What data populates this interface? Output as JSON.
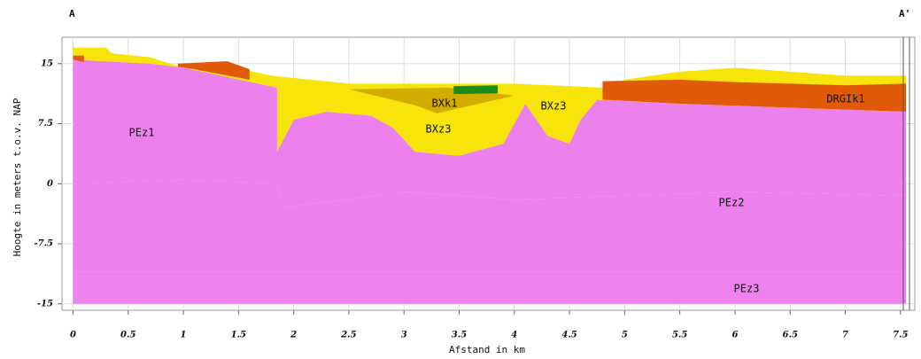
{
  "chart_data": {
    "type": "cross-section",
    "start_label": "A",
    "end_label": "A'",
    "xlabel": "Afstand in km",
    "ylabel": "Hoogte in meters t.o.v. NAP",
    "xlim": [
      -0.1,
      7.63
    ],
    "ylim": [
      -15.8,
      18.3
    ],
    "xticks": [
      0,
      0.5,
      1,
      1.5,
      2,
      2.5,
      3,
      3.5,
      4,
      4.5,
      5,
      5.5,
      6,
      6.5,
      7,
      7.5
    ],
    "yticks": [
      -15,
      -7.5,
      0,
      7.5,
      15
    ],
    "grid": true,
    "layers": [
      {
        "color": "#ee82ee",
        "x": [
          0,
          7.55,
          7.55,
          0
        ],
        "y": [
          -15,
          -15,
          -11,
          -11
        ]
      },
      {
        "color": "#ec80ec",
        "x": [
          0,
          7.55,
          7.55,
          6,
          4,
          3,
          1.9,
          1.85,
          1,
          0
        ],
        "y": [
          -11,
          -11,
          -1.5,
          -1,
          -2,
          -1,
          -3,
          0,
          0.5,
          0
        ]
      },
      {
        "color": "#ec80ec",
        "x": [
          0,
          1,
          1.85,
          1.9,
          3,
          4,
          6,
          7.55,
          7.55,
          6.5,
          5.5,
          4.75,
          4.6,
          4.5,
          4.3,
          4.2,
          4.1,
          4,
          3.9,
          3.5,
          3.1,
          2.9,
          2.7,
          2.3,
          2,
          1.85,
          1.85,
          1,
          0.7,
          0
        ],
        "y": [
          0,
          0.5,
          0,
          -3,
          -1,
          -2,
          -1,
          -1.5,
          9,
          9.5,
          10,
          10.5,
          8,
          5,
          6,
          8,
          10,
          7.5,
          5,
          3.5,
          4,
          7,
          8.5,
          9,
          8,
          4,
          12,
          14.5,
          15,
          15.5
        ]
      },
      {
        "color": "#f7e40a",
        "x": [
          0,
          0.3,
          0.35,
          0.7,
          1,
          1.3,
          1.8,
          2.5,
          4,
          4.8,
          5,
          5.5,
          6,
          6.5,
          7,
          7.55,
          7.55,
          6.5,
          5.5,
          4.75,
          4.6,
          4.5,
          4.3,
          4.2,
          4.1,
          4,
          3.9,
          3.5,
          3.1,
          2.9,
          2.7,
          2.3,
          2,
          1.85,
          1.85,
          1,
          0.7,
          0
        ],
        "y": [
          17,
          17,
          16.3,
          15.8,
          14.5,
          15,
          13.5,
          12.5,
          12.5,
          12,
          13,
          14,
          14.5,
          14,
          13.5,
          13.5,
          9,
          9.5,
          10,
          10.5,
          8,
          5,
          6,
          8,
          10,
          7.5,
          5,
          3.5,
          4,
          7,
          8.5,
          9,
          8,
          4,
          12,
          14.5,
          15,
          15.5
        ]
      },
      {
        "color": "#e05a0a",
        "x": [
          4.8,
          4.8,
          5.5,
          6,
          7,
          7.55,
          7.55,
          6.5,
          5.5
        ],
        "y": [
          10.5,
          12.8,
          13,
          12.7,
          12.3,
          12.5,
          9,
          9.5,
          10
        ]
      },
      {
        "color": "#e05a0a",
        "x": [
          0,
          0.1,
          0.1,
          0
        ],
        "y": [
          16,
          16,
          15.2,
          15.5
        ]
      },
      {
        "color": "#e05a0a",
        "x": [
          0.95,
          1.4,
          1.6,
          1.6,
          1.1,
          0.95
        ],
        "y": [
          15,
          15.3,
          14.3,
          13,
          14.3,
          14.6
        ]
      },
      {
        "color": "#d2ad00",
        "x": [
          2.5,
          3.4,
          4,
          3.3,
          3.1
        ],
        "y": [
          11.8,
          12,
          11,
          8.8,
          9.8
        ]
      },
      {
        "color": "#1a8c1a",
        "x": [
          3.45,
          3.85,
          3.85,
          3.45
        ],
        "y": [
          12.2,
          12.3,
          11.3,
          11.2
        ]
      }
    ],
    "labels": [
      "PEz1",
      "BXk1",
      "BXz3",
      "BXz3",
      "PEz2",
      "PEz3",
      "DRGIk1"
    ]
  }
}
